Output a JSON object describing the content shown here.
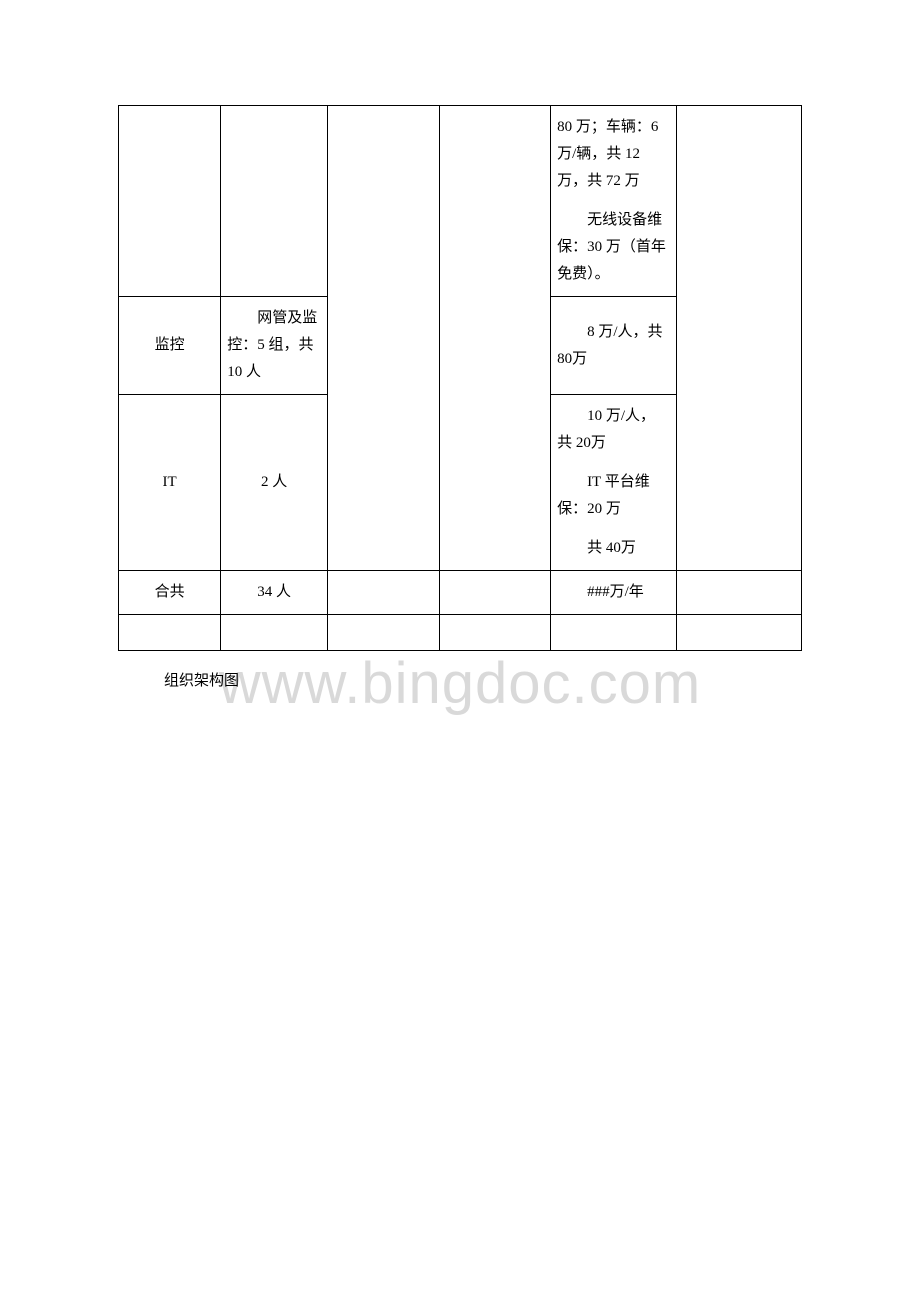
{
  "watermark": "www.bingdoc.com",
  "table": {
    "row1": {
      "col5_para1": "80 万；车辆：6 万/辆，共 12 万，共 72 万",
      "col5_para2": "无线设备维保：30 万（首年免费）。"
    },
    "row2": {
      "col1": "监控",
      "col2": "网管及监控：5 组，共10 人",
      "col5": "8 万/人，共 80万"
    },
    "row3": {
      "col1": "IT",
      "col2": "2 人",
      "col5_para1": "10 万/人，共 20万",
      "col5_para2": "IT 平台维保：20 万",
      "col5_para3": "共 40万"
    },
    "row4": {
      "col1": "合共",
      "col2": "34 人",
      "col5": "###万/年"
    }
  },
  "caption": "组织架构图",
  "colors": {
    "border": "#000000",
    "text": "#000000",
    "background": "#ffffff",
    "watermark": "#d9d9d9"
  },
  "fontsize": {
    "cell": 15,
    "watermark": 58
  }
}
